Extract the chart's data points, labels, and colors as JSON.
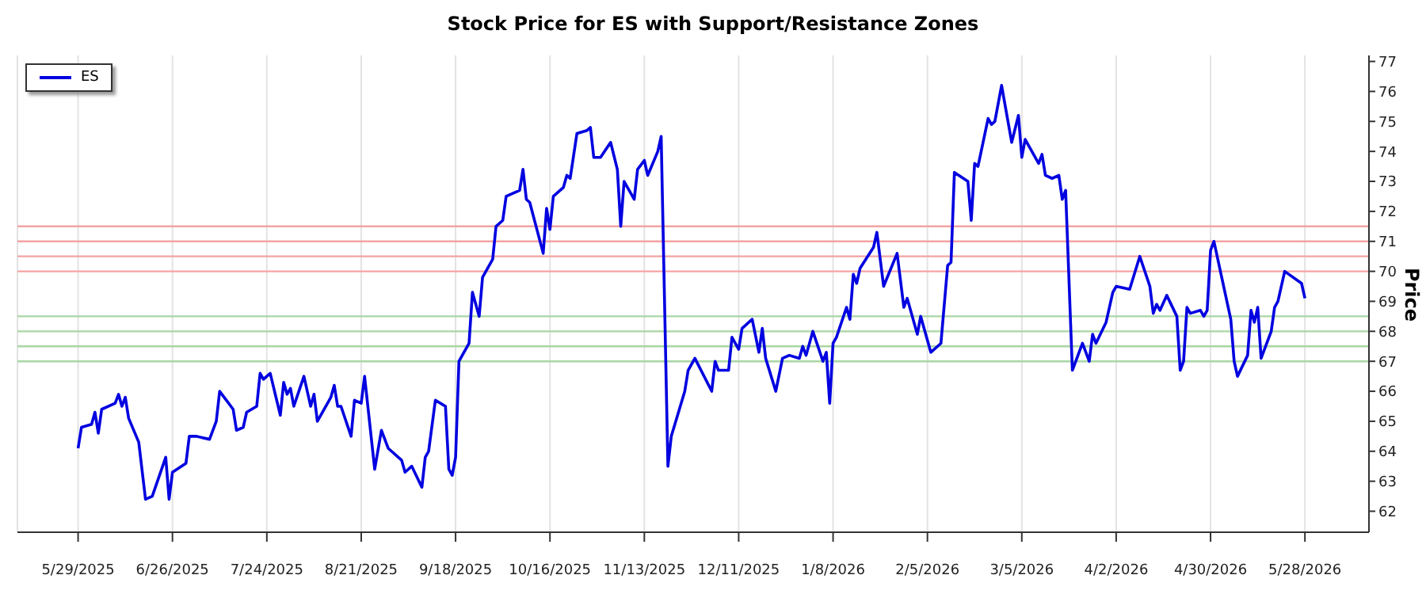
{
  "chart_data": {
    "type": "line",
    "title": "Stock Price for ES with Support/Resistance Zones",
    "ylabel": "Price",
    "x": [
      "2025-05-29",
      "2025-05-30",
      "2025-06-02",
      "2025-06-03",
      "2025-06-04",
      "2025-06-05",
      "2025-06-09",
      "2025-06-10",
      "2025-06-11",
      "2025-06-12",
      "2025-06-13",
      "2025-06-16",
      "2025-06-18",
      "2025-06-20",
      "2025-06-24",
      "2025-06-25",
      "2025-06-26",
      "2025-06-30",
      "2025-07-01",
      "2025-07-03",
      "2025-07-07",
      "2025-07-09",
      "2025-07-10",
      "2025-07-12",
      "2025-07-14",
      "2025-07-15",
      "2025-07-17",
      "2025-07-18",
      "2025-07-21",
      "2025-07-22",
      "2025-07-23",
      "2025-07-25",
      "2025-07-28",
      "2025-07-29",
      "2025-07-30",
      "2025-07-31",
      "2025-08-01",
      "2025-08-04",
      "2025-08-06",
      "2025-08-07",
      "2025-08-08",
      "2025-08-12",
      "2025-08-13",
      "2025-08-14",
      "2025-08-15",
      "2025-08-18",
      "2025-08-19",
      "2025-08-21",
      "2025-08-22",
      "2025-08-25",
      "2025-08-27",
      "2025-08-29",
      "2025-09-02",
      "2025-09-03",
      "2025-09-05",
      "2025-09-08",
      "2025-09-09",
      "2025-09-10",
      "2025-09-12",
      "2025-09-15",
      "2025-09-16",
      "2025-09-17",
      "2025-09-18",
      "2025-09-19",
      "2025-09-22",
      "2025-09-23",
      "2025-09-25",
      "2025-09-26",
      "2025-09-29",
      "2025-09-30",
      "2025-10-02",
      "2025-10-03",
      "2025-10-07",
      "2025-10-08",
      "2025-10-09",
      "2025-10-10",
      "2025-10-14",
      "2025-10-15",
      "2025-10-16",
      "2025-10-17",
      "2025-10-20",
      "2025-10-21",
      "2025-10-22",
      "2025-10-24",
      "2025-10-27",
      "2025-10-28",
      "2025-10-29",
      "2025-10-31",
      "2025-11-03",
      "2025-11-05",
      "2025-11-06",
      "2025-11-07",
      "2025-11-10",
      "2025-11-11",
      "2025-11-13",
      "2025-11-14",
      "2025-11-17",
      "2025-11-18",
      "2025-11-20",
      "2025-11-21",
      "2025-11-25",
      "2025-11-26",
      "2025-11-28",
      "2025-12-03",
      "2025-12-04",
      "2025-12-05",
      "2025-12-08",
      "2025-12-09",
      "2025-12-11",
      "2025-12-12",
      "2025-12-15",
      "2025-12-17",
      "2025-12-18",
      "2025-12-19",
      "2025-12-22",
      "2025-12-24",
      "2025-12-26",
      "2025-12-29",
      "2025-12-30",
      "2025-12-31",
      "2026-01-02",
      "2026-01-05",
      "2026-01-06",
      "2026-01-07",
      "2026-01-08",
      "2026-01-09",
      "2026-01-12",
      "2026-01-13",
      "2026-01-14",
      "2026-01-15",
      "2026-01-16",
      "2026-01-20",
      "2026-01-21",
      "2026-01-23",
      "2026-01-27",
      "2026-01-29",
      "2026-01-30",
      "2026-02-02",
      "2026-02-03",
      "2026-02-06",
      "2026-02-09",
      "2026-02-11",
      "2026-02-12",
      "2026-02-13",
      "2026-02-17",
      "2026-02-18",
      "2026-02-19",
      "2026-02-20",
      "2026-02-23",
      "2026-02-24",
      "2026-02-25",
      "2026-02-27",
      "2026-03-02",
      "2026-03-04",
      "2026-03-05",
      "2026-03-06",
      "2026-03-10",
      "2026-03-11",
      "2026-03-12",
      "2026-03-14",
      "2026-03-16",
      "2026-03-17",
      "2026-03-18",
      "2026-03-20",
      "2026-03-23",
      "2026-03-25",
      "2026-03-26",
      "2026-03-27",
      "2026-03-30",
      "2026-04-01",
      "2026-04-02",
      "2026-04-06",
      "2026-04-09",
      "2026-04-12",
      "2026-04-13",
      "2026-04-14",
      "2026-04-15",
      "2026-04-17",
      "2026-04-20",
      "2026-04-21",
      "2026-04-22",
      "2026-04-23",
      "2026-04-24",
      "2026-04-27",
      "2026-04-28",
      "2026-04-29",
      "2026-04-30",
      "2026-05-01",
      "2026-05-06",
      "2026-05-07",
      "2026-05-08",
      "2026-05-11",
      "2026-05-12",
      "2026-05-13",
      "2026-05-14",
      "2026-05-15",
      "2026-05-18",
      "2026-05-19",
      "2026-05-20",
      "2026-05-22",
      "2026-05-27",
      "2026-05-28"
    ],
    "series": [
      {
        "name": "ES",
        "color": "#0000e0",
        "values": [
          64.1,
          64.8,
          64.9,
          65.3,
          64.6,
          65.4,
          65.6,
          65.9,
          65.5,
          65.8,
          65.1,
          64.3,
          62.4,
          62.5,
          63.8,
          62.4,
          63.3,
          63.6,
          64.5,
          64.5,
          64.4,
          65.0,
          66.0,
          65.7,
          65.4,
          64.7,
          64.8,
          65.3,
          65.5,
          66.6,
          66.4,
          66.6,
          65.2,
          66.3,
          65.9,
          66.1,
          65.5,
          66.5,
          65.5,
          65.9,
          65.0,
          65.8,
          66.2,
          65.5,
          65.5,
          64.5,
          65.7,
          65.6,
          66.5,
          63.4,
          64.7,
          64.1,
          63.7,
          63.3,
          63.5,
          62.8,
          63.8,
          64.0,
          65.7,
          65.5,
          63.4,
          63.2,
          63.8,
          67.0,
          67.6,
          69.3,
          68.5,
          69.8,
          70.4,
          71.5,
          71.7,
          72.5,
          72.7,
          73.4,
          72.4,
          72.3,
          70.6,
          72.1,
          71.4,
          72.5,
          72.8,
          73.2,
          73.1,
          74.6,
          74.7,
          74.8,
          73.8,
          73.8,
          74.3,
          73.4,
          71.5,
          73.0,
          72.4,
          73.4,
          73.7,
          73.2,
          74.0,
          74.5,
          63.5,
          64.5,
          66.0,
          66.7,
          67.1,
          66.0,
          67.0,
          66.7,
          66.7,
          67.8,
          67.4,
          68.1,
          68.4,
          67.3,
          68.1,
          67.1,
          66.0,
          67.1,
          67.2,
          67.1,
          67.5,
          67.2,
          68.0,
          67.0,
          67.3,
          65.6,
          67.6,
          67.8,
          68.8,
          68.4,
          69.9,
          69.6,
          70.1,
          70.8,
          71.3,
          69.5,
          70.6,
          68.8,
          69.1,
          67.9,
          68.5,
          67.3,
          67.6,
          70.2,
          70.3,
          73.3,
          73.0,
          71.7,
          73.6,
          73.5,
          75.1,
          74.9,
          75.0,
          76.2,
          74.3,
          75.2,
          73.8,
          74.4,
          73.6,
          73.9,
          73.2,
          73.1,
          73.2,
          72.4,
          72.7,
          66.7,
          67.6,
          67.0,
          67.9,
          67.6,
          68.3,
          69.3,
          69.5,
          69.4,
          70.5,
          69.5,
          68.6,
          68.9,
          68.7,
          69.2,
          68.5,
          66.7,
          67.0,
          68.8,
          68.6,
          68.7,
          68.5,
          68.7,
          70.7,
          71.0,
          68.4,
          67.0,
          66.5,
          67.2,
          68.7,
          68.3,
          68.8,
          67.1,
          68.0,
          68.8,
          69.0,
          70.0,
          69.6,
          69.1
        ]
      }
    ],
    "xlim": [
      "2025-05-11",
      "2026-06-16"
    ],
    "xticks": [
      {
        "value": "2025-05-29",
        "label": "5/29/2025"
      },
      {
        "value": "2025-06-26",
        "label": "6/26/2025"
      },
      {
        "value": "2025-07-24",
        "label": "7/24/2025"
      },
      {
        "value": "2025-08-21",
        "label": "8/21/2025"
      },
      {
        "value": "2025-09-18",
        "label": "9/18/2025"
      },
      {
        "value": "2025-10-16",
        "label": "10/16/2025"
      },
      {
        "value": "2025-11-13",
        "label": "11/13/2025"
      },
      {
        "value": "2025-12-11",
        "label": "12/11/2025"
      },
      {
        "value": "2026-01-08",
        "label": "1/8/2026"
      },
      {
        "value": "2026-02-05",
        "label": "2/5/2026"
      },
      {
        "value": "2026-03-05",
        "label": "3/5/2026"
      },
      {
        "value": "2026-04-02",
        "label": "4/2/2026"
      },
      {
        "value": "2026-04-30",
        "label": "4/30/2026"
      },
      {
        "value": "2026-05-28",
        "label": "5/28/2026"
      }
    ],
    "ylim": [
      61.3,
      77.2
    ],
    "yticks": [
      62,
      63,
      64,
      65,
      66,
      67,
      68,
      69,
      70,
      71,
      72,
      73,
      74,
      75,
      76,
      77
    ],
    "ref_lines": [
      {
        "axis": "y",
        "value": 71.5,
        "color": "#f4a3a3"
      },
      {
        "axis": "y",
        "value": 71,
        "color": "#f4a3a3"
      },
      {
        "axis": "y",
        "value": 70.5,
        "color": "#f4a3a3"
      },
      {
        "axis": "y",
        "value": 70,
        "color": "#f4a3a3"
      },
      {
        "axis": "y",
        "value": 68.5,
        "color": "#a9d6a4"
      },
      {
        "axis": "y",
        "value": 68,
        "color": "#a9d6a4"
      },
      {
        "axis": "y",
        "value": 67.5,
        "color": "#a9d6a4"
      },
      {
        "axis": "y",
        "value": 67,
        "color": "#a9d6a4"
      }
    ],
    "grid": "x",
    "legend": "top left",
    "marker": "none",
    "line_style": "solid"
  }
}
